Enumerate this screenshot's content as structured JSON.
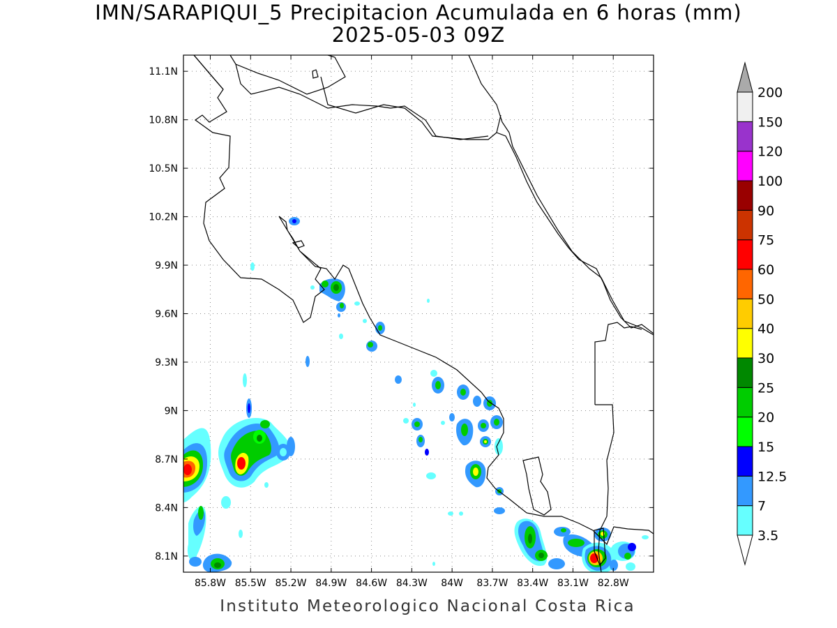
{
  "title": {
    "line1": "IMN/SARAPIQUI_5 Precipitacion Acumulada en 6 horas (mm)",
    "line2": "2025-05-03 09Z"
  },
  "credit": "Instituto Meteorologico Nacional Costa Rica",
  "map": {
    "lon_range": [
      -86.0,
      -82.5
    ],
    "lat_range": [
      8.0,
      11.2
    ],
    "lon_ticks": [
      "85.8W",
      "85.5W",
      "85.2W",
      "84.9W",
      "84.6W",
      "84.3W",
      "84W",
      "83.7W",
      "83.4W",
      "83.1W",
      "82.8W"
    ],
    "lon_tick_values": [
      -85.8,
      -85.5,
      -85.2,
      -84.9,
      -84.6,
      -84.3,
      -84.0,
      -83.7,
      -83.4,
      -83.1,
      -82.8
    ],
    "lat_ticks": [
      "8.1N",
      "8.4N",
      "8.7N",
      "9N",
      "9.3N",
      "9.6N",
      "9.9N",
      "10.2N",
      "10.5N",
      "10.8N",
      "11.1N"
    ],
    "lat_tick_values": [
      8.1,
      8.4,
      8.7,
      9.0,
      9.3,
      9.6,
      9.9,
      10.2,
      10.5,
      10.8,
      11.1
    ],
    "grid": true
  },
  "colorbar": {
    "levels": [
      "3.5",
      "7",
      "12.5",
      "15",
      "20",
      "25",
      "30",
      "40",
      "50",
      "60",
      "75",
      "90",
      "100",
      "120",
      "150",
      "200"
    ],
    "colors": [
      "#66ffff",
      "#3399ff",
      "#0000ff",
      "#00ff00",
      "#00cc00",
      "#008800",
      "#ffff00",
      "#ffcc00",
      "#ff6600",
      "#ff0000",
      "#cc3300",
      "#990000",
      "#ff00ff",
      "#9933cc",
      "#f0f0f0",
      "#aaaaaa"
    ]
  }
}
